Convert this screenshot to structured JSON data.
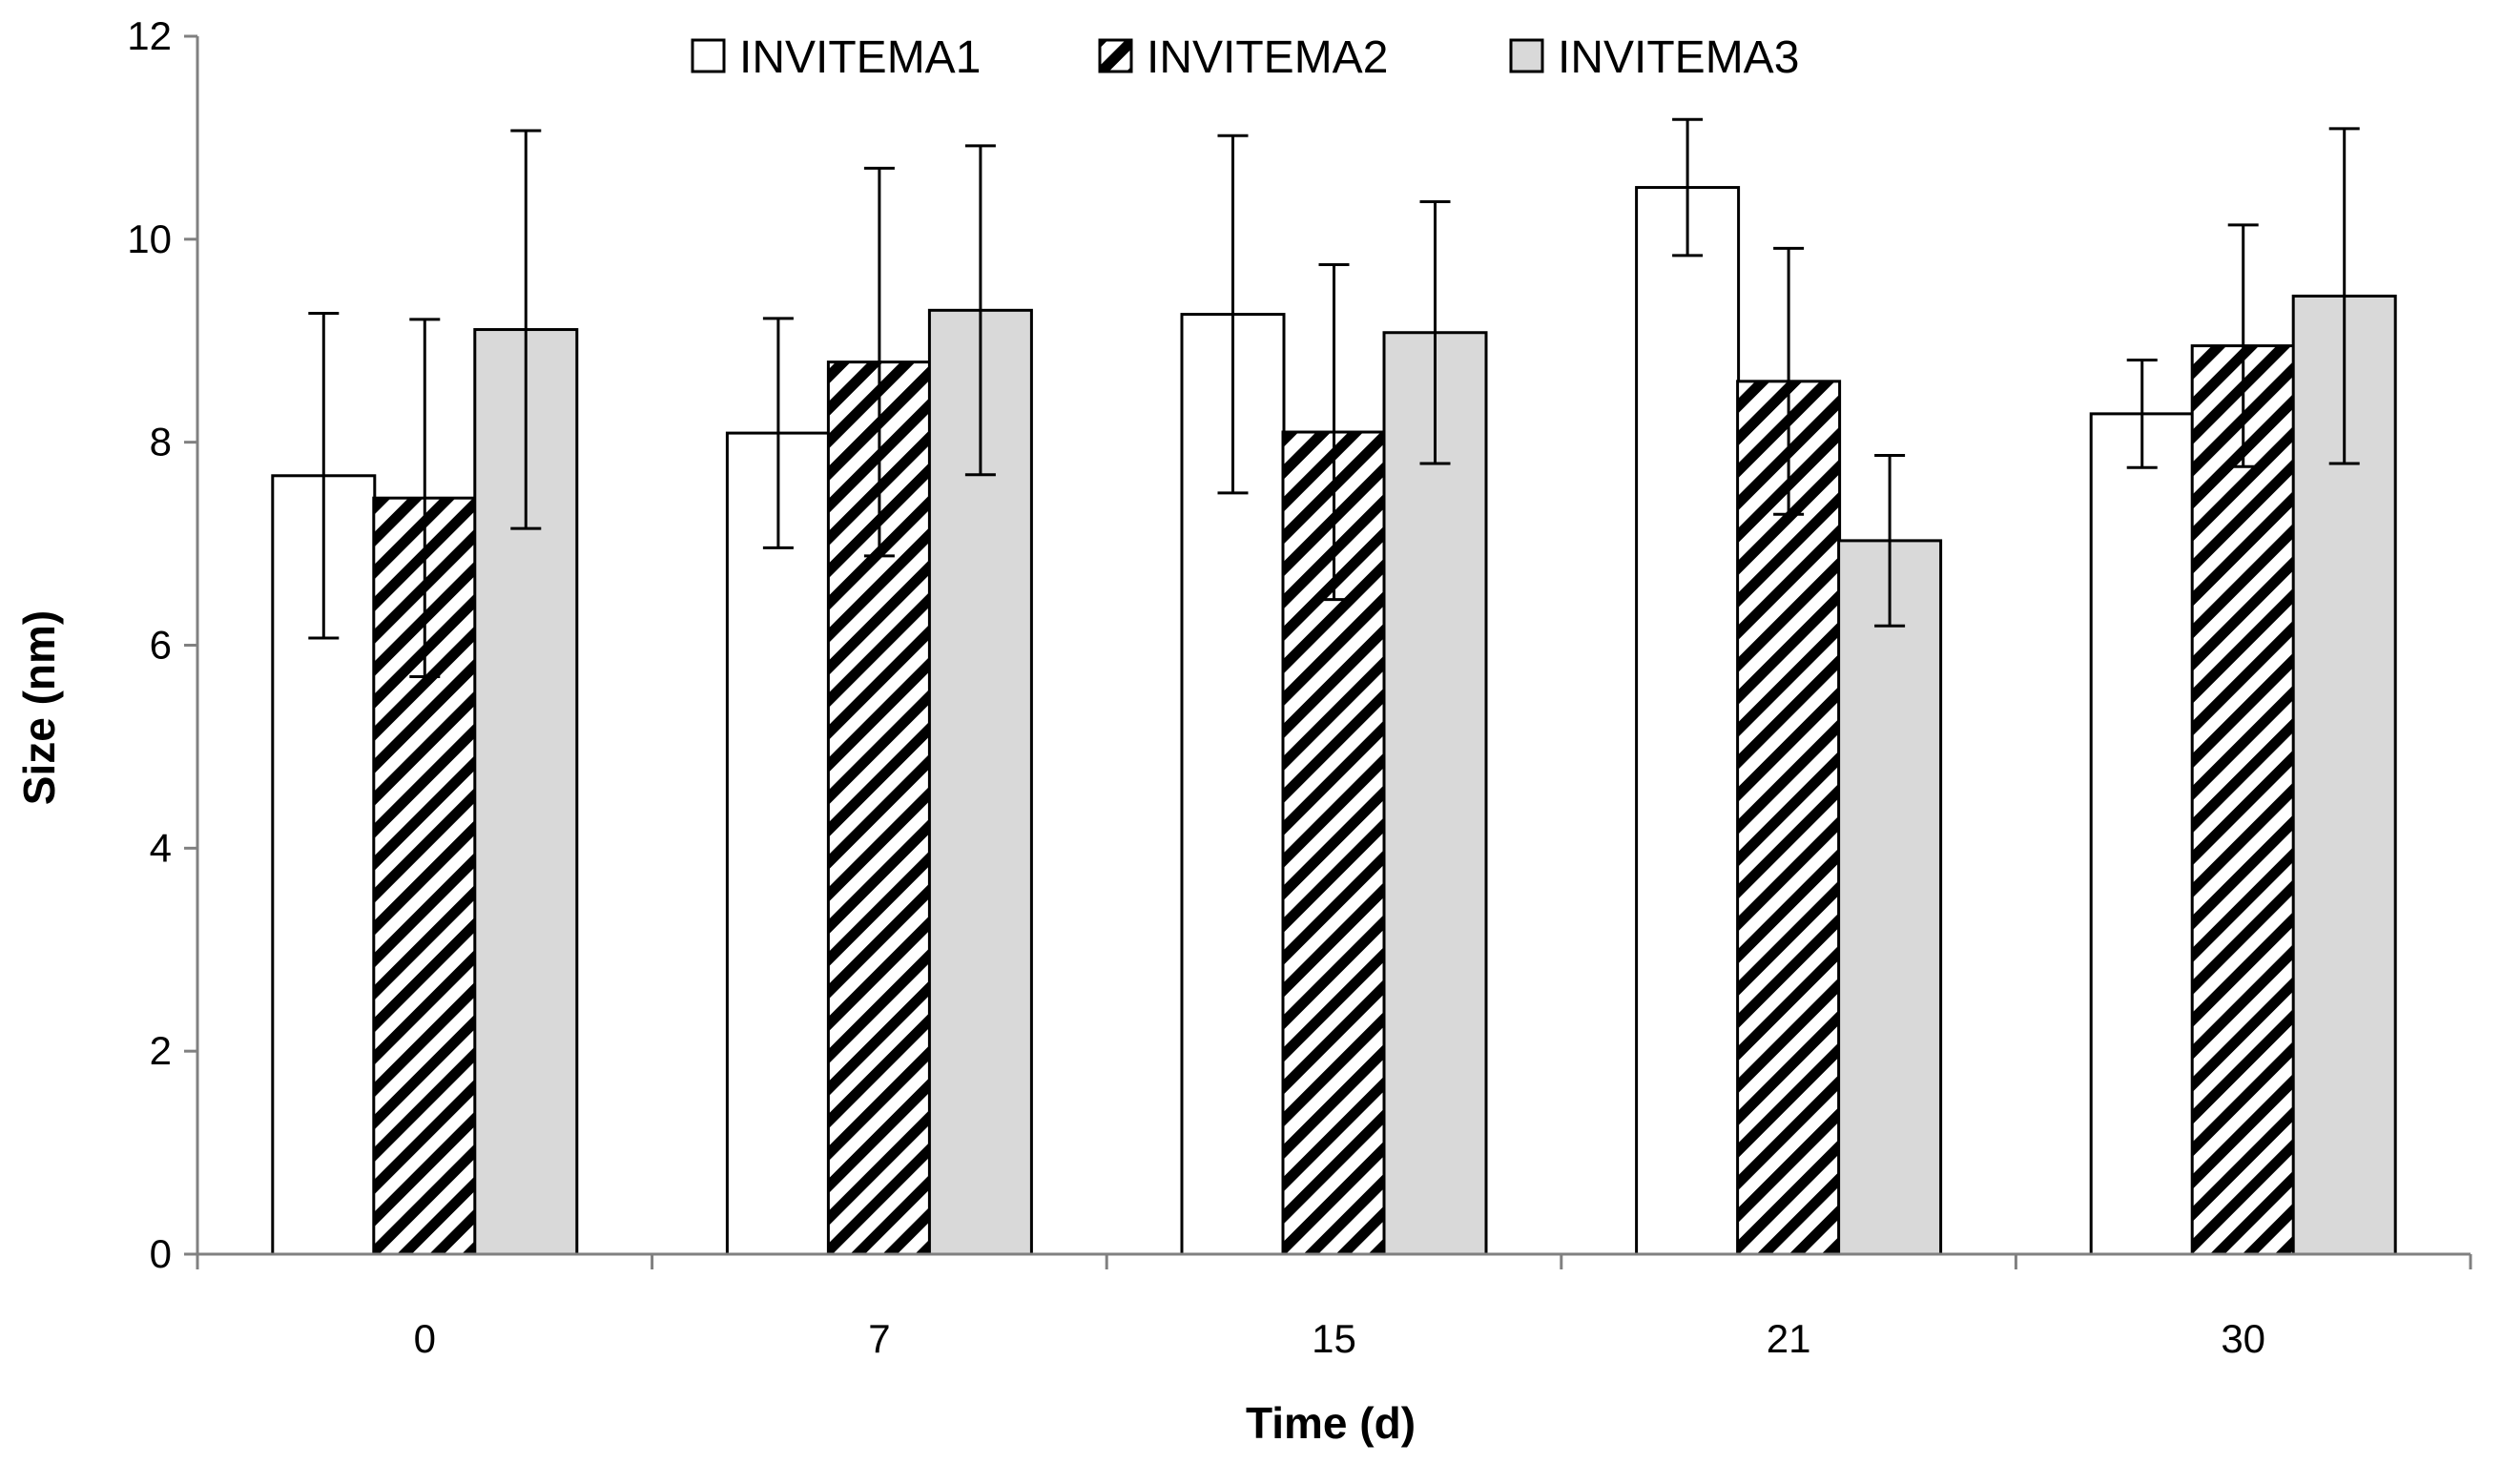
{
  "chart_data": {
    "type": "bar",
    "title": "",
    "xlabel": "Time (d)",
    "ylabel": "Size (nm)",
    "ylim": [
      0,
      12
    ],
    "yticks": [
      0,
      2,
      4,
      6,
      8,
      10,
      12
    ],
    "ytick_labels": [
      "0",
      "2",
      "4",
      "6",
      "8",
      "10",
      "12"
    ],
    "categories": [
      "0",
      "7",
      "15",
      "21",
      "30"
    ],
    "legend_position": "top-center",
    "grid": false,
    "series": [
      {
        "name": "INVITEMA1",
        "fill": "white",
        "values": [
          7.67,
          8.09,
          9.26,
          10.51,
          8.28
        ],
        "errors": [
          1.6,
          1.13,
          1.76,
          0.67,
          0.53
        ]
      },
      {
        "name": "INVITEMA2",
        "fill": "hatched",
        "values": [
          7.45,
          8.79,
          8.1,
          8.6,
          8.95
        ],
        "errors": [
          1.76,
          1.91,
          1.65,
          1.31,
          1.19
        ]
      },
      {
        "name": "INVITEMA3",
        "fill": "light-gray",
        "values": [
          9.11,
          9.3,
          9.08,
          7.03,
          9.44
        ],
        "errors": [
          1.96,
          1.62,
          1.29,
          0.84,
          1.65
        ]
      }
    ]
  },
  "colors": {
    "series_fill_1": "#ffffff",
    "series_fill_3": "#d9d9d9",
    "hatch_stroke": "#000000",
    "axis": "#808080",
    "outline": "#000000"
  }
}
